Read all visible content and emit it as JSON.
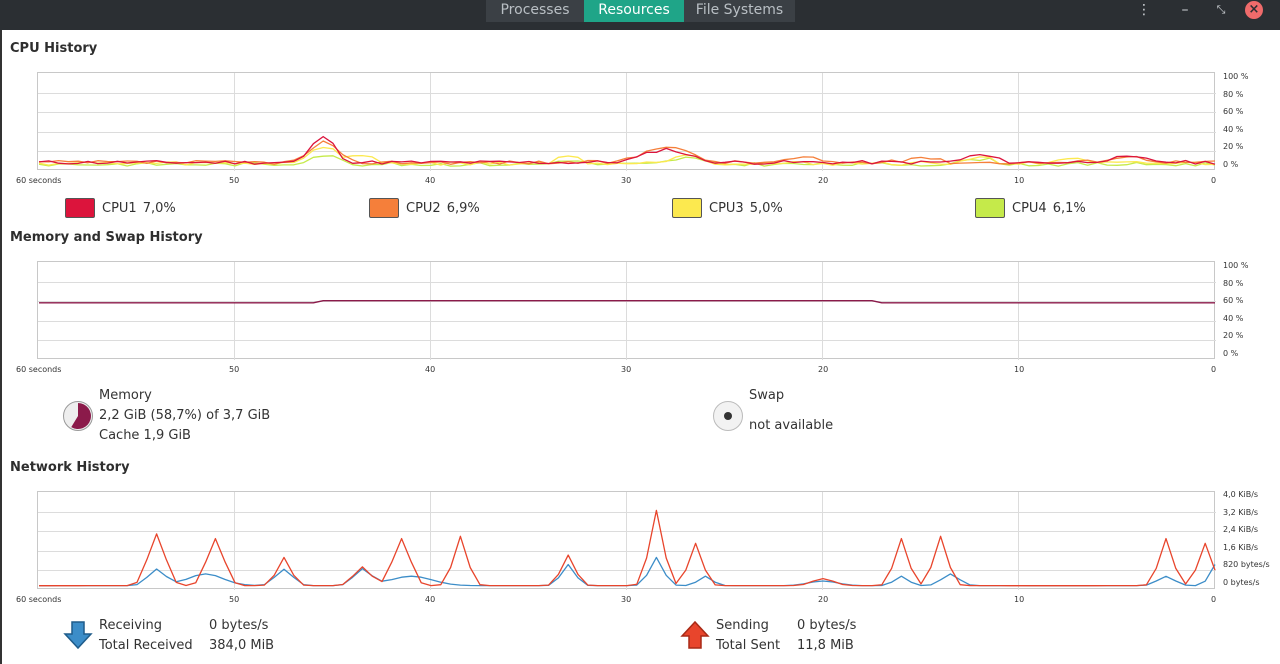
{
  "tabs": [
    {
      "label": "Processes",
      "active": false
    },
    {
      "label": "Resources",
      "active": true
    },
    {
      "label": "File Systems",
      "active": false
    }
  ],
  "window_controls": {
    "menu_icon": "kebab-menu-icon",
    "minimize_icon": "minimize-icon",
    "maximize_icon": "maximize-icon",
    "close_icon": "close-icon"
  },
  "x_axis_labels": [
    "60 seconds",
    "50",
    "40",
    "30",
    "20",
    "10",
    "0"
  ],
  "cpu": {
    "title": "CPU History",
    "y_labels": [
      "100 %",
      "80 %",
      "60 %",
      "40 %",
      "20 %",
      "0 %"
    ],
    "cores": [
      {
        "name": "CPU1",
        "value": "7,0%",
        "color": "#dc143c"
      },
      {
        "name": "CPU2",
        "value": "6,9%",
        "color": "#f57f3a"
      },
      {
        "name": "CPU3",
        "value": "5,0%",
        "color": "#fce94f"
      },
      {
        "name": "CPU4",
        "value": "6,1%",
        "color": "#c5ea4a"
      }
    ]
  },
  "memory": {
    "title": "Memory and Swap History",
    "y_labels": [
      "100 %",
      "80 %",
      "60 %",
      "40 %",
      "20 %",
      "0 %"
    ],
    "mem_label": "Memory",
    "mem_usage": "2,2 GiB (58,7%) of 3,7 GiB",
    "mem_cache": "Cache 1,9 GiB",
    "mem_fraction": 0.587,
    "mem_color": "#8b1a4a",
    "swap_label": "Swap",
    "swap_value": "not available"
  },
  "network": {
    "title": "Network History",
    "y_labels": [
      "4,0 KiB/s",
      "3,2 KiB/s",
      "2,4 KiB/s",
      "1,6 KiB/s",
      "820 bytes/s",
      "0 bytes/s"
    ],
    "receiving_label": "Receiving",
    "receiving_value": "0 bytes/s",
    "total_received_label": "Total Received",
    "total_received_value": "384,0 MiB",
    "sending_label": "Sending",
    "sending_value": "0 bytes/s",
    "total_sent_label": "Total Sent",
    "total_sent_value": "11,8 MiB",
    "receive_color": "#3c8dc8",
    "send_color": "#e8452c"
  }
}
